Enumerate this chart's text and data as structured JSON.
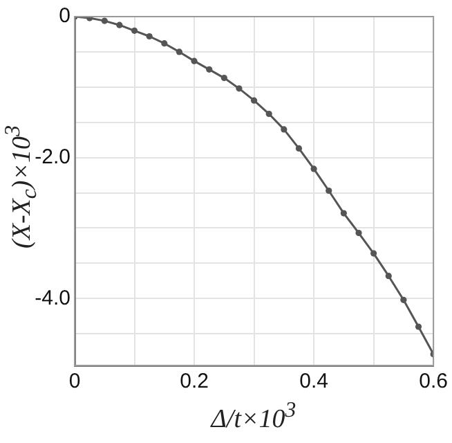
{
  "chart_data": {
    "type": "line",
    "xlabel": "Δ/t×10$^{3}$",
    "ylabel": "(X-X$_{c}$)×10$^{3}$",
    "x": [
      0,
      0.025,
      0.05,
      0.075,
      0.1,
      0.125,
      0.15,
      0.175,
      0.2,
      0.225,
      0.25,
      0.275,
      0.3,
      0.325,
      0.35,
      0.375,
      0.4,
      0.425,
      0.45,
      0.475,
      0.5,
      0.525,
      0.55,
      0.575,
      0.6
    ],
    "series": [
      {
        "color": "#555555",
        "values": [
          0,
          -0.02,
          -0.06,
          -0.12,
          -0.2,
          -0.28,
          -0.38,
          -0.5,
          -0.63,
          -0.75,
          -0.87,
          -1.02,
          -1.19,
          -1.38,
          -1.6,
          -1.87,
          -2.16,
          -2.47,
          -2.79,
          -3.07,
          -3.36,
          -3.68,
          -4.02,
          -4.4,
          -4.79
        ]
      }
    ],
    "xlim": [
      0,
      0.6
    ],
    "xticks": [
      0,
      {
        "value": 0.1,
        "label": null
      },
      {
        "value": 0.2,
        "label": "0.2"
      },
      {
        "value": 0.3,
        "label": null
      },
      {
        "value": 0.4,
        "label": "0.4"
      },
      {
        "value": 0.5,
        "label": null
      },
      {
        "value": 0.6,
        "label": "0.6"
      }
    ],
    "ylim": [
      -4.95,
      0
    ],
    "yticks": [
      {
        "value": -4.5,
        "label": null
      },
      {
        "value": -4,
        "label": "-4.0"
      },
      {
        "value": -3.5,
        "label": null
      },
      {
        "value": -3,
        "label": null
      },
      {
        "value": -2.5,
        "label": null
      },
      {
        "value": -2,
        "label": "-2.0"
      },
      {
        "value": -1.5,
        "label": null
      },
      {
        "value": -1,
        "label": null
      },
      {
        "value": -0.5,
        "label": null
      },
      0
    ],
    "grid": true,
    "marker": "circle",
    "line_style": "solid",
    "legend": false
  }
}
